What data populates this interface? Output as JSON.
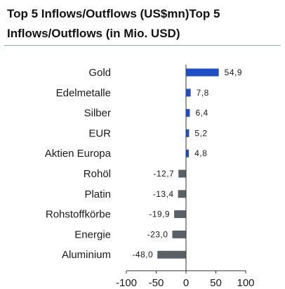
{
  "chart_data": {
    "type": "bar",
    "orientation": "horizontal",
    "title": "Top 5 Inflows/Outflows (US$mn)Top 5 Inflows/Outflows (in Mio. USD)",
    "xlabel": "",
    "ylabel": "",
    "categories": [
      "Gold",
      "Edelmetalle",
      "Silber",
      "EUR",
      "Aktien Europa",
      "Rohöl",
      "Platin",
      "Rohstoffkörbe",
      "Energie",
      "Aluminium"
    ],
    "values": [
      54.9,
      7.8,
      6.4,
      5.2,
      4.8,
      -12.7,
      -13.4,
      -19.9,
      -23.0,
      -48.0
    ],
    "value_labels": [
      "54,9",
      "7,8",
      "6,4",
      "5,2",
      "4,8",
      "-12,7",
      "-13,4",
      "-19,9",
      "-23,0",
      "-48,0"
    ],
    "xlim": [
      -100,
      100
    ],
    "xticks": [
      -100,
      -50,
      0,
      50,
      100
    ],
    "xtick_labels": [
      "-100",
      "-50",
      "0",
      "50",
      "100"
    ],
    "colors": {
      "positive": "#1f4fc4",
      "negative": "#5a6166",
      "axis": "#333333"
    },
    "grid": false,
    "legend": "none"
  }
}
